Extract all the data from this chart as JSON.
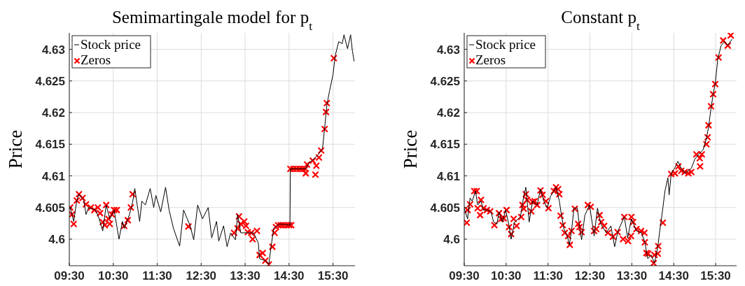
{
  "chart_data": [
    {
      "type": "line",
      "title": "Semimartingale model for p$_{t}$",
      "ylabel": "Price",
      "xlim": [
        9.5,
        16
      ],
      "ylim": [
        4.5958,
        4.6326
      ],
      "xticks": [
        {
          "value": 9.5,
          "label": "09:30"
        },
        {
          "value": 10.5,
          "label": "10:30"
        },
        {
          "value": 11.5,
          "label": "11:30"
        },
        {
          "value": 12.5,
          "label": "12:30"
        },
        {
          "value": 13.5,
          "label": "13:30"
        },
        {
          "value": 14.5,
          "label": "14:30"
        },
        {
          "value": 15.5,
          "label": "15:30"
        }
      ],
      "yticks": [
        {
          "value": 4.6,
          "label": "4.6"
        },
        4.605,
        4.61,
        4.615,
        4.62,
        4.625,
        4.63
      ],
      "grid": true,
      "legend": "top left",
      "series": [
        {
          "name": "Stock price",
          "color": "#000000",
          "marker": "none",
          "x": [
            9.52,
            9.6,
            9.67,
            9.72,
            9.83,
            9.88,
            9.94,
            10.1,
            10.18,
            10.26,
            10.34,
            10.42,
            10.52,
            10.63,
            10.71,
            10.75,
            10.87,
            10.94,
            10.99,
            11.1,
            11.15,
            11.23,
            11.34,
            11.42,
            11.47,
            11.58,
            11.69,
            11.77,
            11.87,
            12.01,
            12.1,
            12.25,
            12.33,
            12.42,
            12.53,
            12.66,
            12.74,
            12.85,
            12.9,
            13.01,
            13.09,
            13.17,
            13.28,
            13.33,
            13.4,
            13.53,
            13.69,
            13.8,
            13.83,
            13.96,
            14.04,
            14.09,
            14.15,
            14.28,
            14.52,
            14.53,
            14.87,
            14.96,
            15.07,
            15.18,
            15.26,
            15.31,
            15.36,
            15.42,
            15.5,
            15.55,
            15.63,
            15.71,
            15.75,
            15.83,
            15.9,
            15.94,
            15.98
          ],
          "values": [
            4.605,
            4.6028,
            4.6061,
            4.6071,
            4.6061,
            4.6039,
            4.605,
            4.6046,
            4.6032,
            4.6013,
            4.6054,
            4.6032,
            4.6046,
            4.6,
            4.6028,
            4.6017,
            4.6039,
            4.6058,
            4.608,
            4.6028,
            4.606,
            4.6054,
            4.608,
            4.605,
            4.6069,
            4.6043,
            4.6082,
            4.6046,
            4.6017,
            4.5989,
            4.6046,
            4.6021,
            4.5999,
            4.6054,
            4.6032,
            4.605,
            4.6002,
            4.6028,
            4.5997,
            4.6021,
            4.5988,
            4.601,
            4.5999,
            4.6039,
            4.601,
            4.601,
            4.601,
            4.5994,
            4.5969,
            4.5966,
            4.596,
            4.5988,
            4.6017,
            4.6024,
            4.6022,
            4.6111,
            4.6111,
            4.6121,
            4.6127,
            4.6135,
            4.6143,
            4.6176,
            4.6212,
            4.6234,
            4.626,
            4.629,
            4.6312,
            4.6309,
            4.6323,
            4.6301,
            4.6323,
            4.6298,
            4.6281
          ]
        },
        {
          "name": "Zeros",
          "type": "scatter",
          "color": "#ff0000",
          "marker": "cross",
          "x": [
            9.52,
            9.56,
            9.6,
            9.67,
            9.72,
            9.8,
            9.88,
            9.99,
            10.07,
            10.15,
            10.2,
            10.26,
            10.31,
            10.34,
            10.39,
            10.42,
            10.47,
            10.52,
            10.58,
            10.75,
            10.83,
            10.9,
            10.94,
            12.21,
            13.25,
            13.33,
            13.36,
            13.4,
            13.48,
            13.52,
            13.56,
            13.64,
            13.67,
            13.77,
            13.83,
            13.9,
            13.96,
            14.04,
            14.12,
            14.17,
            14.2,
            14.25,
            14.31,
            14.37,
            14.44,
            14.5,
            14.55,
            14.53,
            14.6,
            14.67,
            14.74,
            14.81,
            14.87,
            14.88,
            14.91,
            15.04,
            15.12,
            15.1,
            15.18,
            15.23,
            15.31,
            15.34,
            15.36,
            15.52
          ],
          "values": [
            4.605,
            4.6039,
            4.6024,
            4.6061,
            4.6071,
            4.6065,
            4.6055,
            4.605,
            4.6046,
            4.605,
            4.6041,
            4.6027,
            4.6022,
            4.6054,
            4.6032,
            4.6024,
            4.6039,
            4.6046,
            4.6046,
            4.6021,
            4.603,
            4.605,
            4.6071,
            4.602,
            4.601,
            4.6017,
            4.6036,
            4.6024,
            4.6028,
            4.6021,
            4.6011,
            4.601,
            4.6,
            4.6013,
            4.5975,
            4.5978,
            4.5966,
            4.596,
            4.5988,
            4.601,
            4.6019,
            4.6022,
            4.6022,
            4.6022,
            4.6022,
            4.6022,
            4.6022,
            4.6111,
            4.6111,
            4.6111,
            4.6111,
            4.6111,
            4.6111,
            4.6104,
            4.6118,
            4.6124,
            4.6116,
            4.6102,
            4.6129,
            4.614,
            4.6174,
            4.6201,
            4.6215,
            4.6286
          ]
        }
      ]
    },
    {
      "type": "line",
      "title": "Constant p$_{t}$",
      "ylabel": "Price",
      "xlim": [
        9.5,
        16
      ],
      "ylim": [
        4.5958,
        4.6326
      ],
      "xticks": [
        {
          "value": 9.5,
          "label": "09:30"
        },
        {
          "value": 10.5,
          "label": "10:30"
        },
        {
          "value": 11.5,
          "label": "11:30"
        },
        {
          "value": 12.5,
          "label": "12:30"
        },
        {
          "value": 13.5,
          "label": "13:30"
        },
        {
          "value": 14.5,
          "label": "14:30"
        },
        {
          "value": 15.5,
          "label": "15:30"
        }
      ],
      "yticks": [
        {
          "value": 4.6,
          "label": "4.6"
        },
        4.605,
        4.61,
        4.615,
        4.62,
        4.625,
        4.63
      ],
      "grid": true,
      "legend": "top left",
      "series": [
        {
          "name": "Stock price",
          "color": "#000000",
          "marker": "none",
          "x": [
            9.5,
            9.58,
            9.64,
            9.69,
            9.77,
            9.82,
            9.9,
            9.96,
            10.06,
            10.14,
            10.2,
            10.28,
            10.33,
            10.41,
            10.49,
            10.57,
            10.62,
            10.7,
            10.84,
            10.92,
            10.97,
            11.05,
            11.13,
            11.24,
            11.32,
            11.4,
            11.48,
            11.56,
            11.64,
            11.69,
            11.77,
            11.82,
            11.88,
            11.96,
            12.01,
            12.06,
            12.12,
            12.2,
            12.25,
            12.3,
            12.38,
            12.49,
            12.6,
            12.68,
            12.76,
            12.89,
            13,
            13.09,
            13.17,
            13.32,
            13.4,
            13.49,
            13.61,
            13.73,
            13.81,
            13.88,
            13.96,
            14.04,
            14.12,
            14.16,
            14.24,
            14.29,
            14.36,
            14.39,
            14.44,
            14.52,
            14.6,
            14.68,
            14.77,
            14.92,
            15,
            15.09,
            15.2,
            15.28,
            15.33,
            15.39,
            15.44,
            15.49,
            15.55,
            15.63,
            15.71,
            15.79,
            15.89
          ],
          "values": [
            4.6049,
            4.6032,
            4.6065,
            4.606,
            4.6076,
            4.6054,
            4.606,
            4.6046,
            4.6046,
            4.6043,
            4.6027,
            4.6024,
            4.6043,
            4.6027,
            4.6046,
            4.6021,
            4.6,
            4.6027,
            4.6035,
            4.6068,
            4.6082,
            4.6027,
            4.606,
            4.6054,
            4.6079,
            4.606,
            4.6049,
            4.6068,
            4.6076,
            4.6082,
            4.606,
            4.6038,
            4.6016,
            4.6005,
            4.5991,
            4.6013,
            4.6049,
            4.6049,
            4.6021,
            4.5999,
            4.6038,
            4.6054,
            4.6005,
            4.6049,
            4.6024,
            4.601,
            4.6021,
            4.5988,
            4.6013,
            4.6035,
            4.6002,
            4.6032,
            4.6013,
            4.601,
            4.5995,
            4.5969,
            4.5975,
            4.5962,
            4.5988,
            4.601,
            4.6049,
            4.6076,
            4.6097,
            4.607,
            4.6104,
            4.6112,
            4.6123,
            4.6112,
            4.6104,
            4.6112,
            4.6126,
            4.6134,
            4.6141,
            4.6159,
            4.6177,
            4.6207,
            4.6229,
            4.6246,
            4.6284,
            4.6306,
            4.6312,
            4.6306,
            4.6316
          ]
        },
        {
          "name": "Zeros",
          "type": "scatter",
          "color": "#ff0000",
          "marker": "cross",
          "x": [
            9.56,
            9.58,
            9.64,
            9.74,
            9.8,
            9.82,
            9.88,
            9.9,
            9.96,
            10.04,
            10.12,
            10.22,
            10.33,
            10.38,
            10.44,
            10.51,
            10.57,
            10.62,
            10.68,
            10.75,
            10.86,
            10.89,
            10.92,
            10.97,
            11,
            11.1,
            11.13,
            11.18,
            11.24,
            11.32,
            11.37,
            11.45,
            11.51,
            11.64,
            11.69,
            11.74,
            11.77,
            11.8,
            11.85,
            11.9,
            11.98,
            12.02,
            12.06,
            12.14,
            12.22,
            12.25,
            12.3,
            12.45,
            12.52,
            12.6,
            12.65,
            12.73,
            12.77,
            12.84,
            12.93,
            13.05,
            13.16,
            13.29,
            13.32,
            13.41,
            13.49,
            13.53,
            13.48,
            13.61,
            13.72,
            13.8,
            13.81,
            13.85,
            13.89,
            14.04,
            14.02,
            14.12,
            14.13,
            14.24,
            14.44,
            14.53,
            14.61,
            14.68,
            14.76,
            14.85,
            14.92,
            15.04,
            15.12,
            15.13,
            15.17,
            15.28,
            15.31,
            15.33,
            15.39,
            15.44,
            15.49,
            15.57,
            15.68,
            15.79,
            15.86
          ],
          "values": [
            4.6026,
            4.6046,
            4.6055,
            4.6076,
            4.6076,
            4.6049,
            4.6038,
            4.6062,
            4.6049,
            4.6046,
            4.6044,
            4.6022,
            4.6041,
            4.6032,
            4.6033,
            4.6046,
            4.6019,
            4.6008,
            4.6032,
            4.6021,
            4.6035,
            4.6054,
            4.6048,
            4.6071,
            4.6062,
            4.6044,
            4.6059,
            4.606,
            4.6054,
            4.6077,
            4.607,
            4.606,
            4.6049,
            4.6076,
            4.6082,
            4.6079,
            4.6071,
            4.6037,
            4.6022,
            4.601,
            4.6005,
            4.5991,
            4.6013,
            4.6048,
            4.6024,
            4.6019,
            4.6011,
            4.6054,
            4.6051,
            4.6013,
            4.6016,
            4.6038,
            4.6027,
            4.6021,
            4.601,
            4.6004,
            4.6011,
            4.6,
            4.6035,
            4.5997,
            4.6035,
            4.6027,
            4.6005,
            4.6016,
            4.6013,
            4.601,
            4.5995,
            4.5978,
            4.5977,
            4.5975,
            4.5962,
            4.5977,
            4.5989,
            4.6026,
            4.6103,
            4.6104,
            4.6115,
            4.6108,
            4.6106,
            4.6104,
            4.6106,
            4.6134,
            4.6128,
            4.6115,
            4.6134,
            4.615,
            4.6161,
            4.618,
            4.621,
            4.6229,
            4.6245,
            4.6287,
            4.6314,
            4.6306,
            4.6322
          ]
        }
      ]
    }
  ]
}
